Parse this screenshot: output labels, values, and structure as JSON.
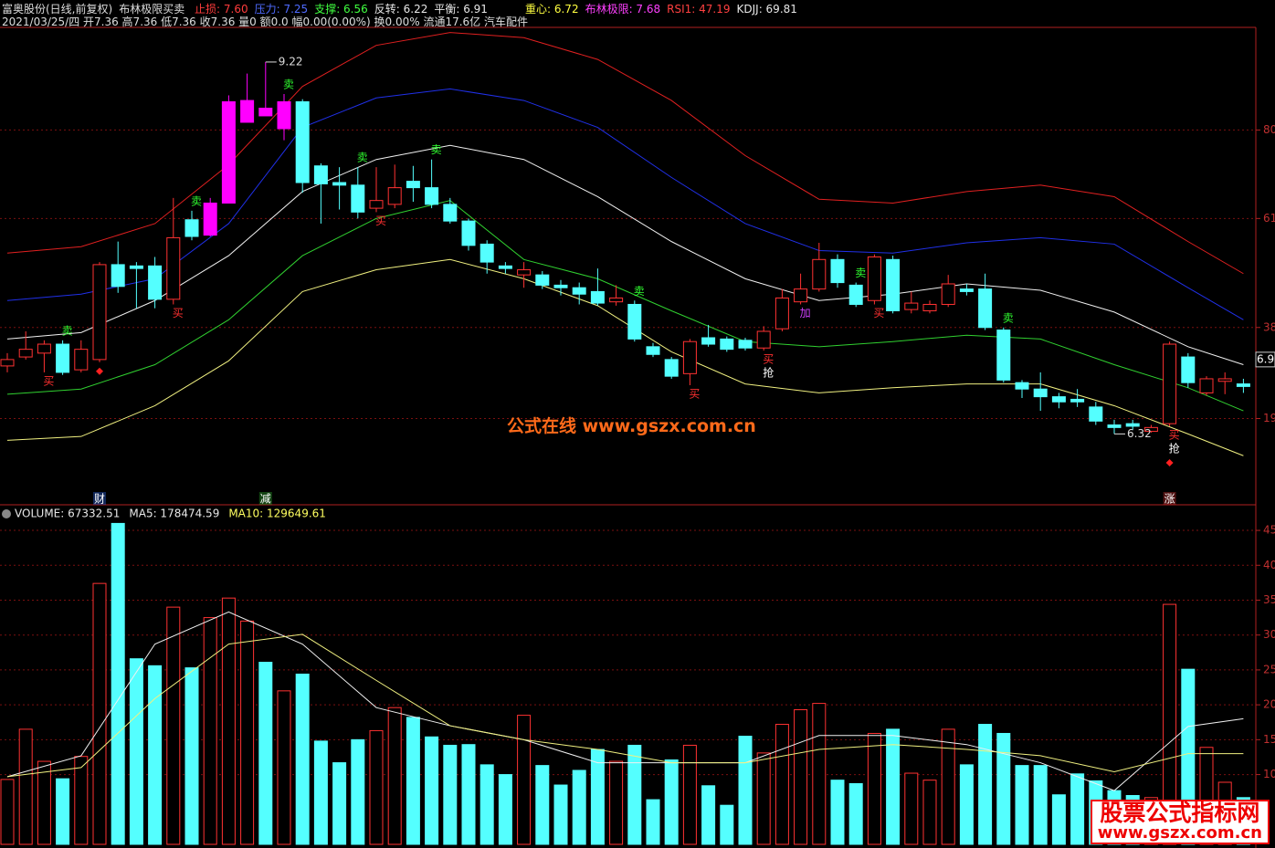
{
  "header": {
    "stock": "富奥股份(日线,前复权)",
    "indicator": "布林极限买卖",
    "readouts": [
      {
        "text": "止损: 7.60",
        "color": "#ff3c3c"
      },
      {
        "text": "压力: 7.25",
        "color": "#4f6bff"
      },
      {
        "text": "支撑: 6.56",
        "color": "#40ff40"
      },
      {
        "text": "反转: 6.22",
        "color": "#e8e8e8"
      },
      {
        "text": "平衡: 6.91",
        "color": "#e8e8e8"
      }
    ],
    "readouts_right": [
      {
        "text": "重心: 6.72",
        "color": "#ffff40"
      },
      {
        "text": "布林极限: 7.68",
        "color": "#ff40ff"
      },
      {
        "text": "RSI1: 47.19",
        "color": "#ff4040"
      },
      {
        "text": "KDJJ: 69.81",
        "color": "#e8e8e8"
      }
    ],
    "info": "2021/03/25/四 开7.36 高7.36 低7.36 收7.36 量0 额0.0 幅0.00(0.00%) 换0.00% 流通17.6亿 汽车配件"
  },
  "chart_data": [
    {
      "type": "candlestick",
      "up_color": "#ff3232",
      "down_color": "#54ffff",
      "limit_up_color": "#ff00ff",
      "limit_up": [
        11,
        12,
        13,
        14,
        15
      ],
      "ylim": [
        5.86,
        9.49
      ],
      "yticks": [
        {
          "value": 8.69,
          "label": "80"
        },
        {
          "value": 8.0,
          "label": "61"
        },
        {
          "value": 7.15,
          "label": "38"
        },
        {
          "value": 6.44,
          "label": "19"
        }
      ],
      "grid": true,
      "last_price": {
        "value": 6.9,
        "label": "6.90"
      },
      "candles": [
        {
          "open": 6.85,
          "high": 6.95,
          "low": 6.8,
          "close": 6.9
        },
        {
          "open": 6.92,
          "high": 7.12,
          "low": 6.9,
          "close": 6.98
        },
        {
          "open": 6.95,
          "high": 7.05,
          "low": 6.8,
          "close": 7.02
        },
        {
          "open": 7.02,
          "high": 7.05,
          "low": 6.78,
          "close": 6.8
        },
        {
          "open": 6.82,
          "high": 7.05,
          "low": 6.8,
          "close": 6.98
        },
        {
          "open": 6.9,
          "high": 7.66,
          "low": 6.88,
          "close": 7.64
        },
        {
          "open": 7.64,
          "high": 7.82,
          "low": 7.42,
          "close": 7.47
        },
        {
          "open": 7.63,
          "high": 7.66,
          "low": 7.3,
          "close": 7.61
        },
        {
          "open": 7.63,
          "high": 7.7,
          "low": 7.3,
          "close": 7.37
        },
        {
          "open": 7.37,
          "high": 8.16,
          "low": 7.33,
          "close": 7.85
        },
        {
          "open": 7.99,
          "high": 8.06,
          "low": 7.83,
          "close": 7.86
        },
        {
          "open": 7.87,
          "high": 8.16,
          "low": 7.86,
          "close": 8.12
        },
        {
          "open": 8.12,
          "high": 8.96,
          "low": 8.12,
          "close": 8.91
        },
        {
          "open": 8.75,
          "high": 9.13,
          "low": 8.75,
          "close": 8.92
        },
        {
          "open": 8.86,
          "high": 9.22,
          "low": 8.8,
          "close": 8.8
        },
        {
          "open": 8.7,
          "high": 8.97,
          "low": 8.61,
          "close": 8.91
        },
        {
          "open": 8.91,
          "high": 8.93,
          "low": 8.2,
          "close": 8.28
        },
        {
          "open": 8.41,
          "high": 8.43,
          "low": 7.96,
          "close": 8.27
        },
        {
          "open": 8.28,
          "high": 8.4,
          "low": 8.07,
          "close": 8.26
        },
        {
          "open": 8.26,
          "high": 8.4,
          "low": 8.0,
          "close": 8.05
        },
        {
          "open": 8.08,
          "high": 8.4,
          "low": 8.05,
          "close": 8.14
        },
        {
          "open": 8.11,
          "high": 8.42,
          "low": 8.08,
          "close": 8.24
        },
        {
          "open": 8.29,
          "high": 8.41,
          "low": 8.13,
          "close": 8.24
        },
        {
          "open": 8.24,
          "high": 8.46,
          "low": 8.08,
          "close": 8.11
        },
        {
          "open": 8.11,
          "high": 8.16,
          "low": 7.96,
          "close": 7.98
        },
        {
          "open": 7.98,
          "high": 8.0,
          "low": 7.75,
          "close": 7.79
        },
        {
          "open": 7.8,
          "high": 7.83,
          "low": 7.57,
          "close": 7.66
        },
        {
          "open": 7.63,
          "high": 7.66,
          "low": 7.57,
          "close": 7.61
        },
        {
          "open": 7.56,
          "high": 7.66,
          "low": 7.46,
          "close": 7.6
        },
        {
          "open": 7.56,
          "high": 7.59,
          "low": 7.45,
          "close": 7.48
        },
        {
          "open": 7.48,
          "high": 7.52,
          "low": 7.4,
          "close": 7.46
        },
        {
          "open": 7.46,
          "high": 7.5,
          "low": 7.33,
          "close": 7.41
        },
        {
          "open": 7.43,
          "high": 7.61,
          "low": 7.32,
          "close": 7.34
        },
        {
          "open": 7.35,
          "high": 7.48,
          "low": 7.32,
          "close": 7.38
        },
        {
          "open": 7.33,
          "high": 7.36,
          "low": 7.04,
          "close": 7.06
        },
        {
          "open": 7.0,
          "high": 7.03,
          "low": 6.92,
          "close": 6.94
        },
        {
          "open": 6.9,
          "high": 6.92,
          "low": 6.75,
          "close": 6.77
        },
        {
          "open": 6.79,
          "high": 7.06,
          "low": 6.7,
          "close": 7.04
        },
        {
          "open": 7.07,
          "high": 7.17,
          "low": 7.0,
          "close": 7.02
        },
        {
          "open": 7.06,
          "high": 7.08,
          "low": 6.96,
          "close": 6.98
        },
        {
          "open": 7.05,
          "high": 7.07,
          "low": 6.97,
          "close": 6.99
        },
        {
          "open": 6.99,
          "high": 7.16,
          "low": 6.97,
          "close": 7.12
        },
        {
          "open": 7.14,
          "high": 7.45,
          "low": 7.12,
          "close": 7.38
        },
        {
          "open": 7.35,
          "high": 7.57,
          "low": 7.33,
          "close": 7.45
        },
        {
          "open": 7.45,
          "high": 7.81,
          "low": 7.43,
          "close": 7.68
        },
        {
          "open": 7.68,
          "high": 7.72,
          "low": 7.46,
          "close": 7.5
        },
        {
          "open": 7.48,
          "high": 7.5,
          "low": 7.31,
          "close": 7.33
        },
        {
          "open": 7.36,
          "high": 7.72,
          "low": 7.33,
          "close": 7.7
        },
        {
          "open": 7.68,
          "high": 7.71,
          "low": 7.26,
          "close": 7.28
        },
        {
          "open": 7.29,
          "high": 7.43,
          "low": 7.26,
          "close": 7.34
        },
        {
          "open": 7.28,
          "high": 7.36,
          "low": 7.26,
          "close": 7.33
        },
        {
          "open": 7.33,
          "high": 7.56,
          "low": 7.31,
          "close": 7.49
        },
        {
          "open": 7.45,
          "high": 7.49,
          "low": 7.4,
          "close": 7.43
        },
        {
          "open": 7.45,
          "high": 7.57,
          "low": 7.13,
          "close": 7.15
        },
        {
          "open": 7.13,
          "high": 7.15,
          "low": 6.72,
          "close": 6.74
        },
        {
          "open": 6.72,
          "high": 6.74,
          "low": 6.6,
          "close": 6.67
        },
        {
          "open": 6.67,
          "high": 6.8,
          "low": 6.5,
          "close": 6.61
        },
        {
          "open": 6.61,
          "high": 6.64,
          "low": 6.52,
          "close": 6.57
        },
        {
          "open": 6.59,
          "high": 6.67,
          "low": 6.53,
          "close": 6.57
        },
        {
          "open": 6.53,
          "high": 6.57,
          "low": 6.39,
          "close": 6.42
        },
        {
          "open": 6.39,
          "high": 6.43,
          "low": 6.32,
          "close": 6.37
        },
        {
          "open": 6.4,
          "high": 6.43,
          "low": 6.35,
          "close": 6.38
        },
        {
          "open": 6.34,
          "high": 6.39,
          "low": 6.33,
          "close": 6.37
        },
        {
          "open": 6.4,
          "high": 7.04,
          "low": 6.38,
          "close": 7.02
        },
        {
          "open": 6.92,
          "high": 6.95,
          "low": 6.68,
          "close": 6.72
        },
        {
          "open": 6.64,
          "high": 6.77,
          "low": 6.62,
          "close": 6.75
        },
        {
          "open": 6.73,
          "high": 6.8,
          "low": 6.63,
          "close": 6.75
        },
        {
          "open": 6.71,
          "high": 6.75,
          "low": 6.64,
          "close": 6.69
        }
      ],
      "lines": [
        {
          "color": "#e02020",
          "x": [
            0,
            4,
            8,
            12,
            16,
            20,
            24,
            28,
            32,
            36,
            40,
            44,
            48,
            52,
            56,
            60,
            64,
            67
          ],
          "values": [
            7.73,
            7.78,
            7.96,
            8.42,
            9.03,
            9.35,
            9.45,
            9.41,
            9.24,
            8.92,
            8.49,
            8.15,
            8.12,
            8.21,
            8.26,
            8.17,
            7.82,
            7.57
          ]
        },
        {
          "color": "#2030e8",
          "x": [
            0,
            4,
            8,
            12,
            16,
            20,
            24,
            28,
            32,
            36,
            40,
            44,
            48,
            52,
            56,
            60,
            64,
            67
          ],
          "values": [
            7.36,
            7.41,
            7.53,
            7.96,
            8.71,
            8.94,
            9.01,
            8.92,
            8.71,
            8.32,
            7.96,
            7.75,
            7.73,
            7.81,
            7.85,
            7.8,
            7.46,
            7.21
          ]
        },
        {
          "color": "#f0f0f0",
          "x": [
            0,
            4,
            8,
            12,
            16,
            20,
            24,
            28,
            32,
            36,
            40,
            44,
            48,
            52,
            56,
            60,
            64,
            67
          ],
          "values": [
            7.06,
            7.11,
            7.36,
            7.71,
            8.21,
            8.46,
            8.57,
            8.46,
            8.17,
            7.82,
            7.53,
            7.36,
            7.41,
            7.49,
            7.44,
            7.27,
            7.0,
            6.86
          ]
        },
        {
          "color": "#30d030",
          "x": [
            0,
            4,
            8,
            12,
            16,
            20,
            24,
            28,
            32,
            36,
            40,
            44,
            48,
            52,
            56,
            60,
            64,
            67
          ],
          "values": [
            6.63,
            6.67,
            6.86,
            7.21,
            7.71,
            8.0,
            8.14,
            7.68,
            7.53,
            7.28,
            7.04,
            7.0,
            7.04,
            7.09,
            7.06,
            6.86,
            6.68,
            6.5
          ]
        },
        {
          "color": "#f0f080",
          "x": [
            0,
            4,
            8,
            12,
            16,
            20,
            24,
            28,
            32,
            36,
            40,
            44,
            48,
            52,
            56,
            60,
            64,
            67
          ],
          "values": [
            6.27,
            6.3,
            6.54,
            6.89,
            7.43,
            7.6,
            7.68,
            7.53,
            7.32,
            6.96,
            6.71,
            6.64,
            6.68,
            6.71,
            6.71,
            6.54,
            6.32,
            6.15
          ]
        }
      ],
      "extremes": [
        {
          "index": 14,
          "value": 9.22
        },
        {
          "index": 60,
          "value": 6.32
        }
      ],
      "signals": [
        {
          "text": "买",
          "index": 2,
          "color": "#ff3030"
        },
        {
          "text": "卖",
          "index": 3,
          "color": "#30ff30"
        },
        {
          "text": "买",
          "index": 9,
          "color": "#ff3030"
        },
        {
          "text": "卖",
          "index": 10,
          "color": "#30ff30"
        },
        {
          "text": "卖",
          "index": 15,
          "color": "#30ff30"
        },
        {
          "text": "卖",
          "index": 19,
          "color": "#30ff30"
        },
        {
          "text": "买",
          "index": 20,
          "color": "#ff3030"
        },
        {
          "text": "卖",
          "index": 23,
          "color": "#30ff30"
        },
        {
          "text": "卖",
          "index": 34,
          "color": "#30ff30"
        },
        {
          "text": "买",
          "index": 37,
          "color": "#ff3030"
        },
        {
          "text": "买",
          "index": 41,
          "color": "#ff3030"
        },
        {
          "text": "抢",
          "index": 41,
          "color": "#ffffff"
        },
        {
          "text": "加",
          "index": 43,
          "color": "#d040ff"
        },
        {
          "text": "卖",
          "index": 46,
          "color": "#30ff30"
        },
        {
          "text": "买",
          "index": 47,
          "color": "#ff3030"
        },
        {
          "text": "卖",
          "index": 54,
          "color": "#30ff30"
        },
        {
          "text": "买",
          "index": 63,
          "color": "#ff3030"
        },
        {
          "text": "抢",
          "index": 63,
          "color": "#ffffff"
        }
      ],
      "markers": [
        {
          "index": 5,
          "color": "#ff2020"
        },
        {
          "index": 63,
          "color": "#ff2020"
        }
      ],
      "tags": [
        {
          "text": "财",
          "index": 5,
          "color": "#3070ff"
        },
        {
          "text": "减",
          "index": 14,
          "color": "#30c030"
        },
        {
          "text": "涨",
          "index": 63,
          "color": "#e03030"
        }
      ]
    },
    {
      "type": "bar",
      "readouts": [
        {
          "text": "VOLUME: 67332.51",
          "color": "#e8e8e8"
        },
        {
          "text": "MA5: 178474.59",
          "color": "#e8e8e8"
        },
        {
          "text": "MA10: 129649.61",
          "color": "#ffff60"
        }
      ],
      "ylim": [
        0,
        47.1
      ],
      "yticks": [
        10,
        15,
        20,
        25,
        30,
        35,
        40,
        45
      ],
      "grid": true,
      "values": [
        9.3,
        16.5,
        11.9,
        9.4,
        12.6,
        37.4,
        46,
        26.6,
        25.6,
        34.0,
        25.3,
        32.5,
        35.3,
        32.0,
        26.1,
        22.0,
        24.4,
        14.8,
        11.7,
        15.0,
        16.3,
        19.6,
        18.2,
        15.4,
        14.2,
        14.3,
        11.4,
        10.0,
        18.5,
        11.3,
        8.5,
        10.6,
        13.6,
        11.9,
        14.2,
        6.4,
        12.1,
        14.2,
        8.4,
        5.6,
        15.5,
        13.1,
        17.2,
        19.3,
        20.2,
        9.2,
        8.7,
        15.9,
        16.5,
        10.2,
        9.2,
        16.5,
        11.4,
        17.2,
        15.9,
        11.3,
        11.3,
        7.1,
        10.1,
        9.1,
        7.7,
        7.0,
        6.7,
        34.4,
        25.1,
        13.9,
        8.9,
        6.7
      ],
      "lines": [
        {
          "color": "#f0f0f0",
          "x": [
            0,
            4,
            8,
            12,
            16,
            20,
            24,
            28,
            32,
            36,
            40,
            44,
            48,
            52,
            56,
            60,
            64,
            67
          ],
          "values": [
            9.7,
            12.7,
            28.7,
            33.3,
            28.7,
            19.6,
            17.0,
            15.0,
            11.7,
            11.7,
            11.7,
            15.6,
            15.6,
            14.3,
            11.7,
            7.7,
            16.9,
            18.0
          ]
        },
        {
          "color": "#f0f080",
          "x": [
            0,
            4,
            8,
            12,
            16,
            20,
            24,
            28,
            32,
            36,
            40,
            44,
            48,
            52,
            56,
            60,
            64,
            67
          ],
          "values": [
            9.7,
            11.0,
            20.9,
            28.7,
            30.1,
            23.5,
            17.0,
            15.0,
            13.6,
            11.7,
            11.7,
            13.6,
            14.3,
            13.6,
            12.7,
            10.4,
            13.0,
            13.0
          ]
        }
      ]
    }
  ],
  "watermarks": [
    "公式在线  www.gszx.com.cn",
    "股票公式指标网",
    "www.gszx.com.cn"
  ]
}
